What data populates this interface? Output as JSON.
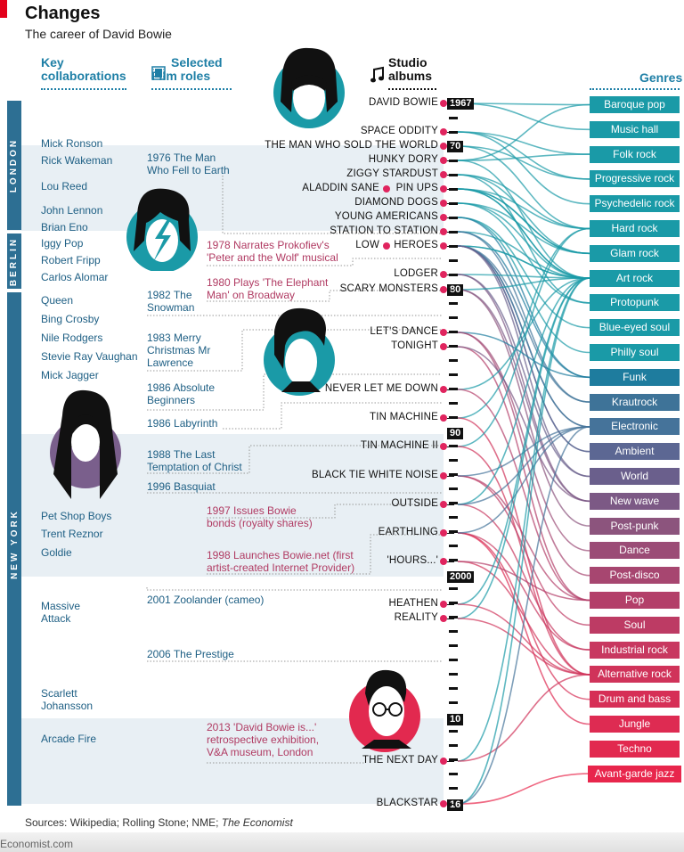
{
  "title": "Changes",
  "subtitle": "The career of David Bowie",
  "headers": {
    "collaborations": "Key collaborations",
    "films": "Selected Film roles",
    "albums": "Studio albums",
    "genres": "Genres"
  },
  "cities": [
    "LONDON",
    "BERLIN",
    "NEW YORK"
  ],
  "collaborations": [
    "Mick Ronson",
    "Rick Wakeman",
    "Lou Reed",
    "John Lennon",
    "Brian Eno",
    "Iggy Pop",
    "Robert Fripp",
    "Carlos Alomar",
    "Queen",
    "Bing Crosby",
    "Nile Rodgers",
    "Stevie Ray Vaughan",
    "Mick Jagger",
    "Pet Shop Boys",
    "Trent Reznor",
    "Goldie",
    "Massive Attack",
    "Scarlett Johansson",
    "Arcade Fire"
  ],
  "films": [
    {
      "text": "1976 The Man Who Fell to Earth",
      "kind": "film"
    },
    {
      "text": "1978 Narrates Prokofiev's 'Peter and the Wolf' musical",
      "kind": "event"
    },
    {
      "text": "1980 Plays 'The Elephant Man' on Broadway",
      "kind": "event"
    },
    {
      "text": "1982 The Snowman",
      "kind": "film"
    },
    {
      "text": "1983 Merry Christmas Mr Lawrence",
      "kind": "film"
    },
    {
      "text": "1986 Absolute Beginners",
      "kind": "film"
    },
    {
      "text": "1986 Labyrinth",
      "kind": "film"
    },
    {
      "text": "1988 The Last Temptation of Christ",
      "kind": "film"
    },
    {
      "text": "1996 Basquiat",
      "kind": "film"
    },
    {
      "text": "1997 Issues Bowie bonds (royalty shares)",
      "kind": "event"
    },
    {
      "text": "1998 Launches Bowie.net (first artist-created Internet Provider)",
      "kind": "event"
    },
    {
      "text": "2001 Zoolander (cameo)",
      "kind": "film"
    },
    {
      "text": "2006 The Prestige",
      "kind": "film"
    },
    {
      "text": "2013 'David Bowie is...' retrospective exhibition, V&A museum, London",
      "kind": "event"
    }
  ],
  "years": [
    "1967",
    "70",
    "80",
    "90",
    "2000",
    "10",
    "16"
  ],
  "albums": [
    "DAVID BOWIE",
    "SPACE ODDITY",
    "THE MAN WHO SOLD THE WORLD",
    "HUNKY DORY",
    "ZIGGY STARDUST",
    "ALADDIN SANE",
    "PIN UPS",
    "DIAMOND DOGS",
    "YOUNG AMERICANS",
    "STATION TO STATION",
    "LOW",
    "HEROES",
    "LODGER",
    "SCARY MONSTERS",
    "LET'S DANCE",
    "TONIGHT",
    "NEVER LET ME DOWN",
    "TIN MACHINE",
    "TIN MACHINE II",
    "BLACK TIE WHITE NOISE",
    "OUTSIDE",
    "EARTHLING",
    "'HOURS...'",
    "HEATHEN",
    "REALITY",
    "THE NEXT DAY",
    "BLACKSTAR"
  ],
  "genres": [
    {
      "name": "Baroque pop",
      "color": "#1a9aa7"
    },
    {
      "name": "Music hall",
      "color": "#1a9aa7"
    },
    {
      "name": "Folk rock",
      "color": "#1a9aa7"
    },
    {
      "name": "Progressive rock",
      "color": "#1a9aa7"
    },
    {
      "name": "Psychedelic rock",
      "color": "#1a9aa7"
    },
    {
      "name": "Hard rock",
      "color": "#1a9aa7"
    },
    {
      "name": "Glam rock",
      "color": "#1a9aa7"
    },
    {
      "name": "Art rock",
      "color": "#1a9aa7"
    },
    {
      "name": "Protopunk",
      "color": "#1a9aa7"
    },
    {
      "name": "Blue-eyed soul",
      "color": "#1a9aa7"
    },
    {
      "name": "Philly soul",
      "color": "#1a9aa7"
    },
    {
      "name": "Funk",
      "color": "#1e7c9e"
    },
    {
      "name": "Krautrock",
      "color": "#3e7398"
    },
    {
      "name": "Electronic",
      "color": "#45739a"
    },
    {
      "name": "Ambient",
      "color": "#5c6793"
    },
    {
      "name": "World",
      "color": "#6a5f8c"
    },
    {
      "name": "New wave",
      "color": "#7c5985"
    },
    {
      "name": "Post-punk",
      "color": "#8c547d"
    },
    {
      "name": "Dance",
      "color": "#9b4c76"
    },
    {
      "name": "Post-disco",
      "color": "#a74670"
    },
    {
      "name": "Pop",
      "color": "#b33f69"
    },
    {
      "name": "Soul",
      "color": "#bd3b64"
    },
    {
      "name": "Industrial rock",
      "color": "#c83860"
    },
    {
      "name": "Alternative rock",
      "color": "#d0335a"
    },
    {
      "name": "Drum and bass",
      "color": "#d62f56"
    },
    {
      "name": "Jungle",
      "color": "#de2b52"
    },
    {
      "name": "Techno",
      "color": "#e2294f"
    },
    {
      "name": "Avant-garde jazz",
      "color": "#e8264c"
    }
  ],
  "sources": "Sources: Wikipedia; Rolling Stone; NME; ",
  "sources_italic": "The Economist",
  "footer": "Economist.com",
  "colors": {
    "accent": "#e3001b",
    "blue": "#1e7fa6",
    "pink": "#b03a62",
    "dot": "#e0245e"
  }
}
